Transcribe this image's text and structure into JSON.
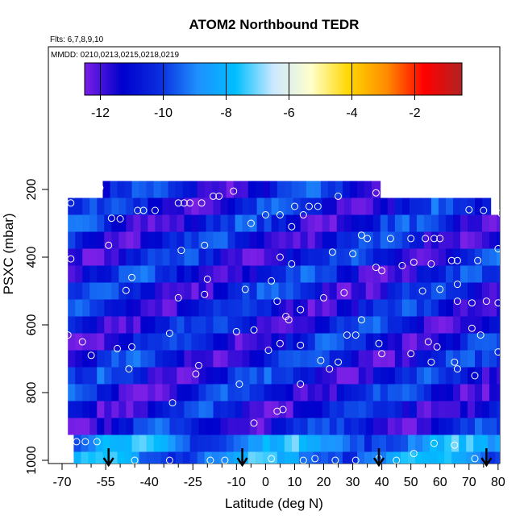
{
  "chart_data": {
    "type": "heatmap",
    "title": "ATOM2 Northbound TEDR",
    "notes": [
      "Flts: 6,7,8,9,10",
      "MMDD: 0210,0213,0215,0218,0219"
    ],
    "xlabel": "Latitude (deg N)",
    "ylabel": "PSXC (mbar)",
    "xlim": [
      -70,
      85
    ],
    "ylim": [
      1000,
      100
    ],
    "x_ticks": [
      -70,
      -55,
      -40,
      -25,
      -10,
      0,
      10,
      20,
      30,
      40,
      50,
      60,
      70,
      80
    ],
    "y_ticks": [
      200,
      400,
      600,
      800,
      1000
    ],
    "colorbar": {
      "range": [
        -12.5,
        -0.5
      ],
      "ticks": [
        -12,
        -10,
        -8,
        -6,
        -4,
        -2
      ],
      "colors": [
        "#7a1fe6",
        "#0000cc",
        "#0a2ee0",
        "#1e90ff",
        "#00bfff",
        "#cce8ff",
        "#ffffcc",
        "#ffd700",
        "#ff8c00",
        "#ff0000",
        "#b22222"
      ]
    },
    "pressure_bins": [
      200,
      250,
      300,
      350,
      400,
      450,
      500,
      550,
      600,
      650,
      700,
      750,
      800,
      850,
      900,
      950,
      1000
    ],
    "arrows_latitude": [
      -54,
      -8,
      39,
      76
    ],
    "observation_points": [
      {
        "lat": -57,
        "p": 195
      },
      {
        "lat": -66,
        "p": 215
      },
      {
        "lat": -60,
        "p": 207
      },
      {
        "lat": -67,
        "p": 240
      },
      {
        "lat": -53,
        "p": 285
      },
      {
        "lat": -50,
        "p": 287
      },
      {
        "lat": -44,
        "p": 262
      },
      {
        "lat": -42,
        "p": 262
      },
      {
        "lat": -38,
        "p": 262
      },
      {
        "lat": -30,
        "p": 240
      },
      {
        "lat": -28,
        "p": 240
      },
      {
        "lat": -26,
        "p": 240
      },
      {
        "lat": -22,
        "p": 240
      },
      {
        "lat": -18,
        "p": 220
      },
      {
        "lat": -16,
        "p": 220
      },
      {
        "lat": -11,
        "p": 205
      },
      {
        "lat": -5,
        "p": 300
      },
      {
        "lat": 0,
        "p": 275
      },
      {
        "lat": 5,
        "p": 275
      },
      {
        "lat": 10,
        "p": 250
      },
      {
        "lat": 13,
        "p": 275
      },
      {
        "lat": 15,
        "p": 250
      },
      {
        "lat": 18,
        "p": 250
      },
      {
        "lat": 9,
        "p": 310
      },
      {
        "lat": 25,
        "p": 220
      },
      {
        "lat": 33,
        "p": 335
      },
      {
        "lat": 35,
        "p": 345
      },
      {
        "lat": 38,
        "p": 210
      },
      {
        "lat": 43,
        "p": 345
      },
      {
        "lat": 50,
        "p": 345
      },
      {
        "lat": 55,
        "p": 345
      },
      {
        "lat": 58,
        "p": 345
      },
      {
        "lat": 60,
        "p": 345
      },
      {
        "lat": 70,
        "p": 260
      },
      {
        "lat": 75,
        "p": 262
      },
      {
        "lat": 81,
        "p": 270
      },
      {
        "lat": -67,
        "p": 405
      },
      {
        "lat": -54,
        "p": 365
      },
      {
        "lat": -29,
        "p": 380
      },
      {
        "lat": -21,
        "p": 365
      },
      {
        "lat": 5,
        "p": 400
      },
      {
        "lat": 9,
        "p": 420
      },
      {
        "lat": 23,
        "p": 385
      },
      {
        "lat": 30,
        "p": 390
      },
      {
        "lat": 38,
        "p": 430
      },
      {
        "lat": 40,
        "p": 440
      },
      {
        "lat": 47,
        "p": 425
      },
      {
        "lat": 51,
        "p": 415
      },
      {
        "lat": 57,
        "p": 420
      },
      {
        "lat": 64,
        "p": 410
      },
      {
        "lat": 66,
        "p": 410
      },
      {
        "lat": 73,
        "p": 410
      },
      {
        "lat": 80,
        "p": 375
      },
      {
        "lat": -46,
        "p": 460
      },
      {
        "lat": -48,
        "p": 498
      },
      {
        "lat": -30,
        "p": 520
      },
      {
        "lat": -20,
        "p": 465
      },
      {
        "lat": -21,
        "p": 510
      },
      {
        "lat": -7,
        "p": 495
      },
      {
        "lat": 2,
        "p": 470
      },
      {
        "lat": 4,
        "p": 530
      },
      {
        "lat": 7,
        "p": 575
      },
      {
        "lat": 8,
        "p": 585
      },
      {
        "lat": 12,
        "p": 555
      },
      {
        "lat": 20,
        "p": 520
      },
      {
        "lat": 27,
        "p": 505
      },
      {
        "lat": 33,
        "p": 585
      },
      {
        "lat": 54,
        "p": 500
      },
      {
        "lat": 60,
        "p": 495
      },
      {
        "lat": 66,
        "p": 480
      },
      {
        "lat": 66,
        "p": 530
      },
      {
        "lat": 71,
        "p": 535
      },
      {
        "lat": 76,
        "p": 530
      },
      {
        "lat": 80,
        "p": 535
      },
      {
        "lat": 82,
        "p": 560
      },
      {
        "lat": -68,
        "p": 630
      },
      {
        "lat": -63,
        "p": 650
      },
      {
        "lat": -60,
        "p": 690
      },
      {
        "lat": -51,
        "p": 670
      },
      {
        "lat": -46,
        "p": 665
      },
      {
        "lat": -33,
        "p": 625
      },
      {
        "lat": -23,
        "p": 720
      },
      {
        "lat": -24,
        "p": 745
      },
      {
        "lat": -10,
        "p": 620
      },
      {
        "lat": 1,
        "p": 675
      },
      {
        "lat": -4,
        "p": 615
      },
      {
        "lat": 5,
        "p": 655
      },
      {
        "lat": 12,
        "p": 660
      },
      {
        "lat": 19,
        "p": 705
      },
      {
        "lat": 25,
        "p": 710
      },
      {
        "lat": 28,
        "p": 630
      },
      {
        "lat": 31,
        "p": 630
      },
      {
        "lat": 39,
        "p": 655
      },
      {
        "lat": 40,
        "p": 685
      },
      {
        "lat": 50,
        "p": 685
      },
      {
        "lat": 56,
        "p": 650
      },
      {
        "lat": 59,
        "p": 665
      },
      {
        "lat": 57,
        "p": 710
      },
      {
        "lat": 65,
        "p": 710
      },
      {
        "lat": 66,
        "p": 730
      },
      {
        "lat": 71,
        "p": 610
      },
      {
        "lat": 74,
        "p": 630
      },
      {
        "lat": 80,
        "p": 680
      },
      {
        "lat": -47,
        "p": 730
      },
      {
        "lat": -9,
        "p": 775
      },
      {
        "lat": 12,
        "p": 775
      },
      {
        "lat": 22,
        "p": 730
      },
      {
        "lat": 72,
        "p": 750
      },
      {
        "lat": -32,
        "p": 830
      },
      {
        "lat": 4,
        "p": 855
      },
      {
        "lat": 6,
        "p": 850
      },
      {
        "lat": -4,
        "p": 890
      },
      {
        "lat": -65,
        "p": 945
      },
      {
        "lat": -62,
        "p": 945
      },
      {
        "lat": -58,
        "p": 945
      },
      {
        "lat": 58,
        "p": 950
      },
      {
        "lat": 65,
        "p": 955
      },
      {
        "lat": 82,
        "p": 970
      },
      {
        "lat": 51,
        "p": 980
      },
      {
        "lat": -45,
        "p": 1000
      },
      {
        "lat": -33,
        "p": 1000
      },
      {
        "lat": -19,
        "p": 1000
      },
      {
        "lat": -14,
        "p": 1000
      },
      {
        "lat": 2,
        "p": 995
      },
      {
        "lat": 13,
        "p": 1000
      },
      {
        "lat": 17,
        "p": 995
      },
      {
        "lat": 24,
        "p": 1000
      },
      {
        "lat": 31,
        "p": 1000
      },
      {
        "lat": 39,
        "p": 995
      },
      {
        "lat": 45,
        "p": 1000
      },
      {
        "lat": 72,
        "p": 995
      }
    ]
  }
}
